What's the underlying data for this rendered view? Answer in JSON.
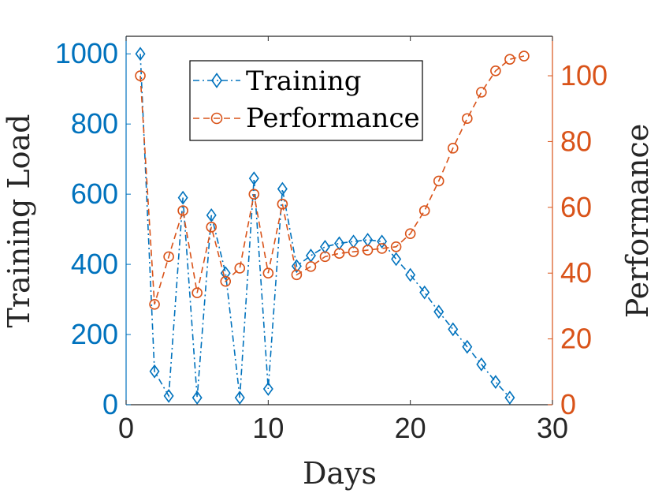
{
  "chart_data": {
    "type": "line",
    "xlabel": "Days",
    "ylabel_left": "Training Load",
    "ylabel_right": "Performance",
    "xlim": [
      0,
      30
    ],
    "ylim_left": [
      0,
      1050
    ],
    "ylim_right": [
      0,
      112
    ],
    "xticks": [
      "0",
      "10",
      "20",
      "30"
    ],
    "yticks_left": [
      "0",
      "200",
      "400",
      "600",
      "800",
      "1000"
    ],
    "yticks_right": [
      "0",
      "20",
      "40",
      "60",
      "80",
      "100"
    ],
    "legend_position": "top-center",
    "colors": {
      "training": "#0072BD",
      "performance": "#D95319"
    },
    "series": [
      {
        "name": "Training",
        "axis": "left",
        "marker": "diamond",
        "line_style": "dash-dot",
        "x": [
          1,
          2,
          3,
          4,
          5,
          6,
          7,
          8,
          9,
          10,
          11,
          12,
          13,
          14,
          15,
          16,
          17,
          18,
          19,
          20,
          21,
          22,
          23,
          24,
          25,
          26,
          27
        ],
        "values": [
          1000,
          95,
          25,
          590,
          20,
          540,
          375,
          20,
          645,
          45,
          615,
          395,
          425,
          450,
          460,
          465,
          470,
          465,
          415,
          370,
          320,
          265,
          215,
          165,
          115,
          65,
          20
        ]
      },
      {
        "name": "Performance",
        "axis": "right",
        "marker": "circle",
        "line_style": "dash",
        "x": [
          1,
          2,
          3,
          4,
          5,
          6,
          7,
          8,
          9,
          10,
          11,
          12,
          13,
          14,
          15,
          16,
          17,
          18,
          19,
          20,
          21,
          22,
          23,
          24,
          25,
          26,
          27,
          28
        ],
        "values": [
          100,
          30.5,
          45,
          59,
          34,
          54,
          37.5,
          41.5,
          64,
          40,
          61,
          39.5,
          42,
          45,
          46,
          46.5,
          47,
          47.5,
          48,
          52,
          59,
          68,
          78,
          87,
          95,
          101.5,
          105,
          106
        ]
      }
    ]
  }
}
